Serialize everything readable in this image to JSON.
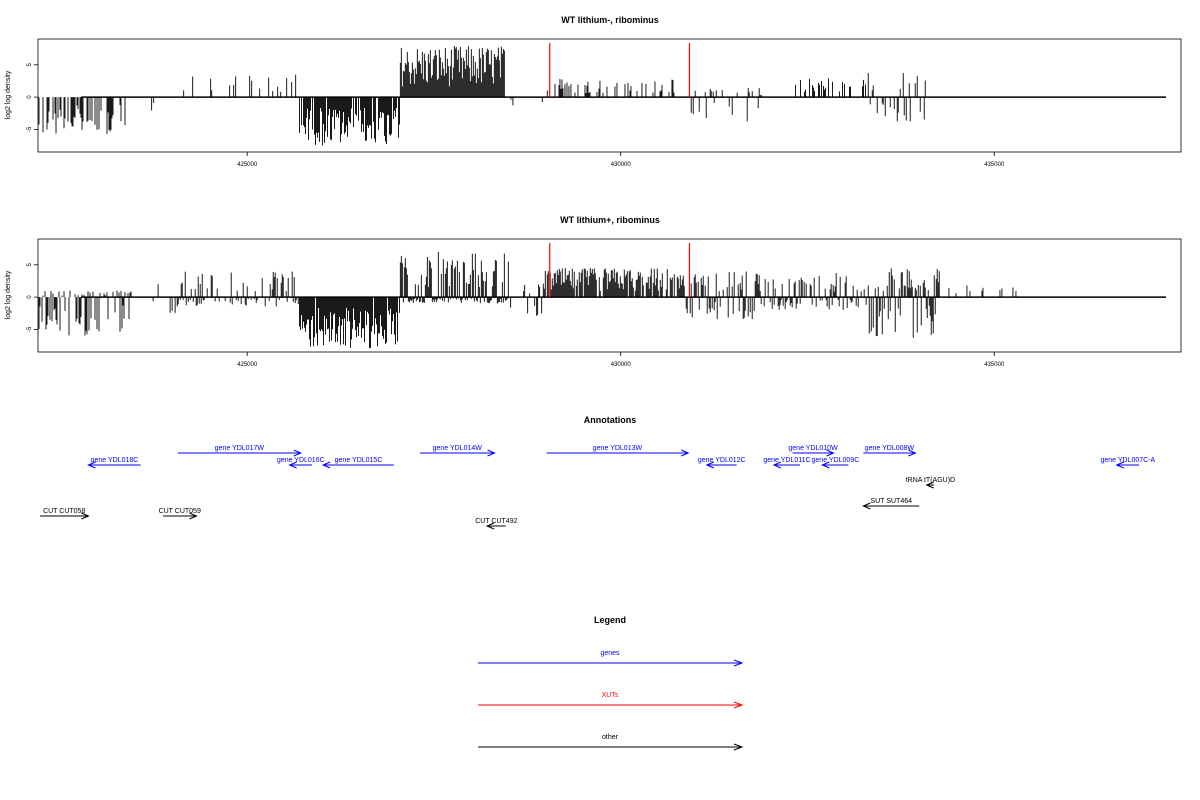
{
  "chart_data": [
    {
      "type": "bar",
      "title": "WT lithium-, ribominus",
      "ylabel": "log2 log density",
      "xlim": [
        422200,
        437500
      ],
      "ylim": [
        -8.5,
        9
      ],
      "y_ticks": [
        -5,
        0,
        5
      ],
      "x_ticks": [
        425000,
        430000,
        435000
      ],
      "x_tick_labels": [
        "425000",
        "430000",
        "435000"
      ],
      "baseline_range": [
        422200,
        437300
      ],
      "xut_positions": [
        429050,
        430920
      ],
      "segments": [
        {
          "start": 422200,
          "end": 423400,
          "min": -6,
          "max": 0,
          "density": 0.5
        },
        {
          "start": 423400,
          "end": 423750,
          "min": -3,
          "max": 0,
          "density": 0.1
        },
        {
          "start": 424150,
          "end": 425700,
          "min": 0,
          "max": 3.5,
          "density": 0.2
        },
        {
          "start": 425700,
          "end": 427050,
          "min": -7.5,
          "max": 0,
          "density": 0.85
        },
        {
          "start": 427050,
          "end": 428450,
          "min": 0,
          "max": 8,
          "density": 1
        },
        {
          "start": 428450,
          "end": 428700,
          "min": -2,
          "max": 1,
          "density": 0.1
        },
        {
          "start": 428950,
          "end": 429120,
          "min": -2,
          "max": 2.5,
          "density": 0.2
        },
        {
          "start": 429120,
          "end": 430800,
          "min": 0,
          "max": 3,
          "density": 0.25
        },
        {
          "start": 430850,
          "end": 431900,
          "min": -4,
          "max": 1.5,
          "density": 0.4
        },
        {
          "start": 432300,
          "end": 433300,
          "min": 0,
          "max": 3,
          "density": 0.3
        },
        {
          "start": 433300,
          "end": 434100,
          "min": -4,
          "max": 4,
          "density": 0.35
        }
      ]
    },
    {
      "type": "bar",
      "title": "WT lithium+, ribominus",
      "ylabel": "log2 log density",
      "xlim": [
        422200,
        437500
      ],
      "ylim": [
        -8.5,
        9
      ],
      "y_ticks": [
        -5,
        0,
        5
      ],
      "x_ticks": [
        425000,
        430000,
        435000
      ],
      "x_tick_labels": [
        "425000",
        "430000",
        "435000"
      ],
      "baseline_range": [
        422200,
        437300
      ],
      "xut_positions": [
        429050,
        430920
      ],
      "segments": [
        {
          "start": 422200,
          "end": 423500,
          "min": -6,
          "max": 1,
          "density": 0.7
        },
        {
          "start": 423500,
          "end": 424050,
          "min": -3,
          "max": 2.5,
          "density": 0.2
        },
        {
          "start": 424050,
          "end": 425700,
          "min": -1.5,
          "max": 4,
          "density": 0.55
        },
        {
          "start": 425700,
          "end": 427050,
          "min": -8,
          "max": 0,
          "density": 0.95
        },
        {
          "start": 427050,
          "end": 428500,
          "min": -1,
          "max": 7,
          "density": 1
        },
        {
          "start": 428500,
          "end": 428950,
          "min": -3,
          "max": 2,
          "density": 0.3
        },
        {
          "start": 428950,
          "end": 430850,
          "min": 0,
          "max": 4.5,
          "density": 0.85
        },
        {
          "start": 430850,
          "end": 431800,
          "min": -3.5,
          "max": 4,
          "density": 0.7
        },
        {
          "start": 431800,
          "end": 433300,
          "min": -2,
          "max": 4,
          "density": 0.65
        },
        {
          "start": 433300,
          "end": 434300,
          "min": -6.5,
          "max": 4.5,
          "density": 0.75
        },
        {
          "start": 434300,
          "end": 435300,
          "min": 0,
          "max": 2,
          "density": 0.1
        }
      ]
    }
  ],
  "annotations": {
    "title": "Annotations",
    "xlim": [
      422200,
      437500
    ],
    "features": [
      {
        "label": "gene YDL018C",
        "start": 422850,
        "end": 423550,
        "strand": "-",
        "row": 0,
        "kind": "gene"
      },
      {
        "label": "gene YDL017W",
        "start": 424050,
        "end": 425700,
        "strand": "+",
        "row": 1,
        "kind": "gene"
      },
      {
        "label": "gene YDL016C",
        "start": 425550,
        "end": 425850,
        "strand": "-",
        "row": 0,
        "kind": "gene"
      },
      {
        "label": "gene YDL015C",
        "start": 426000,
        "end": 426950,
        "strand": "-",
        "row": 0,
        "kind": "gene"
      },
      {
        "label": "gene YDL014W",
        "start": 427300,
        "end": 428300,
        "strand": "+",
        "row": 1,
        "kind": "gene"
      },
      {
        "label": "gene YDL013W",
        "start": 429000,
        "end": 430900,
        "strand": "+",
        "row": 1,
        "kind": "gene"
      },
      {
        "label": "gene YDL012C",
        "start": 431150,
        "end": 431550,
        "strand": "-",
        "row": 0,
        "kind": "gene"
      },
      {
        "label": "gene YDL011C",
        "start": 432050,
        "end": 432400,
        "strand": "-",
        "row": 0,
        "kind": "gene"
      },
      {
        "label": "gene YDL010W",
        "start": 432300,
        "end": 432850,
        "strand": "+",
        "row": 1,
        "kind": "gene"
      },
      {
        "label": "gene YDL009C",
        "start": 432700,
        "end": 433050,
        "strand": "-",
        "row": 0,
        "kind": "gene"
      },
      {
        "label": "gene YDL008W",
        "start": 433250,
        "end": 433950,
        "strand": "+",
        "row": 1,
        "kind": "gene"
      },
      {
        "label": "gene YDL007C-A",
        "start": 436650,
        "end": 436950,
        "strand": "-",
        "row": 0,
        "kind": "gene"
      },
      {
        "label": "tRNA tT(AGU)D",
        "start": 434100,
        "end": 434200,
        "strand": "-",
        "row": 2,
        "kind": "other"
      },
      {
        "label": "SUT SUT464",
        "start": 433250,
        "end": 434000,
        "strand": "-",
        "row": 3,
        "kind": "other"
      },
      {
        "label": "CUT CUT058",
        "start": 422200,
        "end": 422850,
        "strand": "+",
        "row": 4,
        "kind": "other"
      },
      {
        "label": "CUT CUT059",
        "start": 423850,
        "end": 424300,
        "strand": "+",
        "row": 4,
        "kind": "other"
      },
      {
        "label": "CUT CUT492",
        "start": 428200,
        "end": 428450,
        "strand": "-",
        "row": 5,
        "kind": "other"
      }
    ]
  },
  "legend": {
    "title": "Legend",
    "entries": [
      {
        "label": "genes",
        "color": "#0000ff"
      },
      {
        "label": "XUTs",
        "color": "#ff0000"
      },
      {
        "label": "other",
        "color": "#000000"
      }
    ]
  },
  "colors": {
    "bars": "#000000",
    "xut": "#ff0000",
    "gene": "#0000ff",
    "other": "#000000"
  }
}
